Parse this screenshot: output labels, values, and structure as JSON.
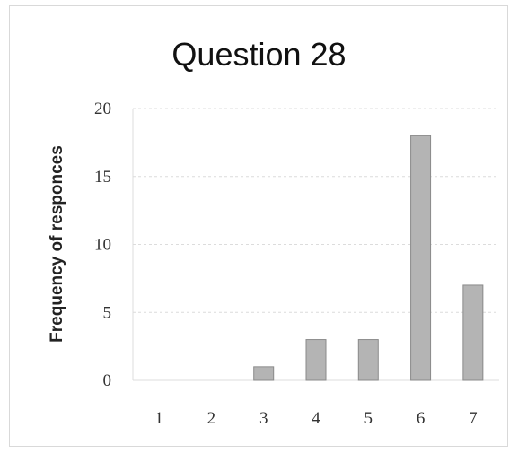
{
  "chart_data": {
    "type": "bar",
    "title": "Question 28",
    "xlabel": "",
    "ylabel": "Frequency of responces",
    "categories": [
      "1",
      "2",
      "3",
      "4",
      "5",
      "6",
      "7"
    ],
    "values": [
      0,
      0,
      1,
      3,
      3,
      18,
      7
    ],
    "ylim": [
      0,
      20
    ],
    "yticks": [
      0,
      5,
      10,
      15,
      20
    ],
    "grid": true,
    "bar_color": "#b4b4b4",
    "bar_edge_color": "#8a8a8a",
    "grid_color": "#dcdcdc"
  }
}
